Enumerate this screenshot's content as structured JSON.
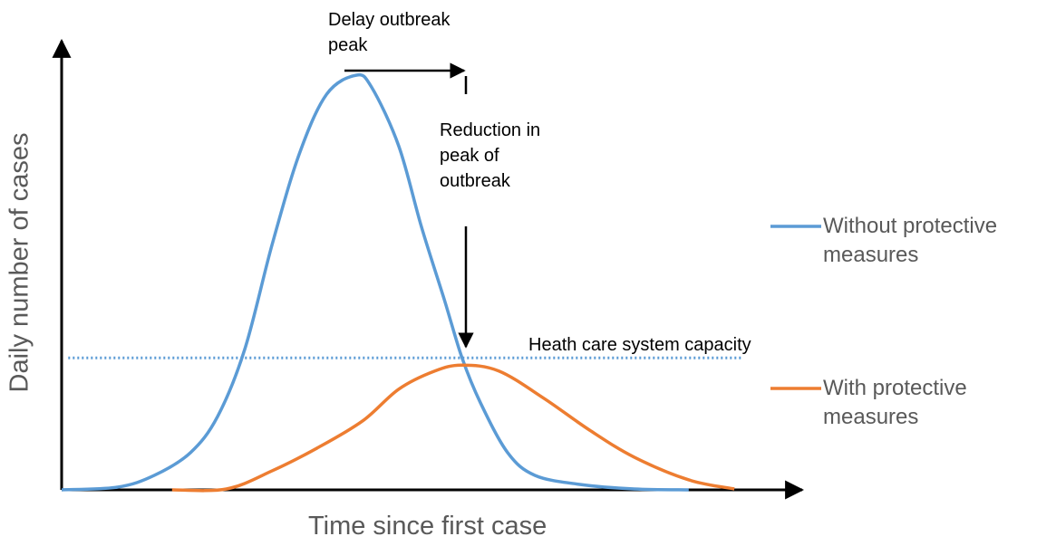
{
  "chart_data": {
    "type": "line",
    "x_label": "Time since first case",
    "y_label": "Daily number of cases",
    "xlim": [
      0,
      100
    ],
    "ylim": [
      0,
      100
    ],
    "annotations": [
      "Delay outbreak peak",
      "Reduction in peak of outbreak"
    ],
    "capacity": {
      "label": "Heath care system capacity",
      "value": 29.1,
      "x": [
        0.9,
        92.4
      ],
      "color": "#5b9bd5"
    },
    "series": [
      {
        "name": "Without protective measures",
        "color": "#5b9bd5",
        "x": [
          0,
          7.6,
          12.6,
          17.5,
          21.2,
          24.9,
          28.6,
          32.3,
          36.0,
          40.0,
          42.1,
          45.8,
          48.9,
          52.0,
          54.4,
          56.9,
          60.6,
          64.3,
          70.4,
          77.8,
          85.2
        ],
        "values": [
          0,
          0.6,
          3.2,
          8.2,
          16.2,
          31.1,
          54.1,
          74.1,
          87.2,
          91.4,
          88.8,
          75.8,
          57.9,
          41.9,
          29.1,
          19.2,
          8.2,
          3.2,
          1.2,
          0.2,
          0
        ]
      },
      {
        "name": "With protective measures",
        "color": "#ed7d31",
        "x": [
          15.0,
          22.4,
          28.6,
          34.7,
          40.9,
          45.8,
          50.7,
          54.4,
          59.4,
          65.5,
          71.7,
          77.8,
          85.2,
          91.4
        ],
        "values": [
          0,
          0.2,
          4.2,
          9.2,
          15.2,
          22.2,
          26.2,
          27.5,
          26.2,
          20.2,
          13.2,
          7.2,
          2.2,
          0.2
        ]
      }
    ]
  }
}
